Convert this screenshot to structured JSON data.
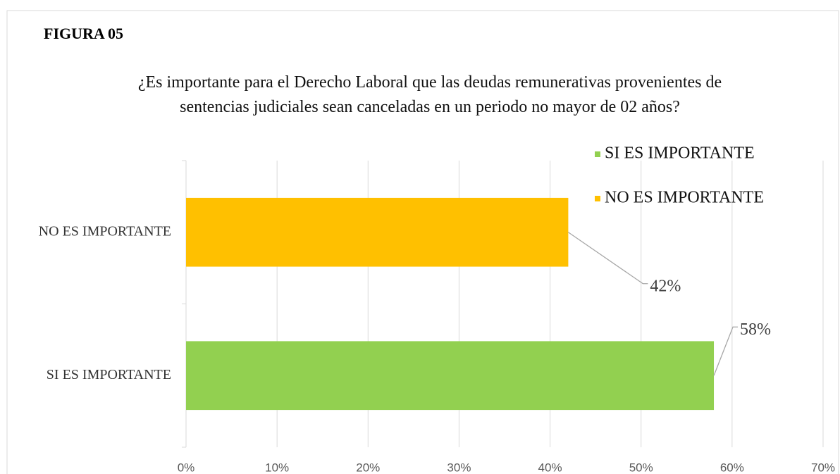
{
  "chart_data": {
    "type": "hbar",
    "label": "FIGURA 05",
    "title": "¿Es importante para el Derecho Laboral que las deudas remunerativas provenientes de sentencias judiciales sean canceladas en un periodo no mayor de 02 años?",
    "categories": [
      "SI ES IMPORTANTE",
      "NO ES IMPORTANTE"
    ],
    "values": [
      58,
      42
    ],
    "value_labels": [
      "58%",
      "42%"
    ],
    "colors": [
      "#92d050",
      "#ffc000"
    ],
    "xlim": [
      0,
      70
    ],
    "xticks": [
      {
        "value": 0,
        "label": "0%"
      },
      {
        "value": 10,
        "label": "10%"
      },
      {
        "value": 20,
        "label": "20%"
      },
      {
        "value": 30,
        "label": "30%"
      },
      {
        "value": 40,
        "label": "40%"
      },
      {
        "value": 50,
        "label": "50%"
      },
      {
        "value": 60,
        "label": "60%"
      },
      {
        "value": 70,
        "label": "70%"
      }
    ],
    "grid": true,
    "legend": "top-right"
  }
}
